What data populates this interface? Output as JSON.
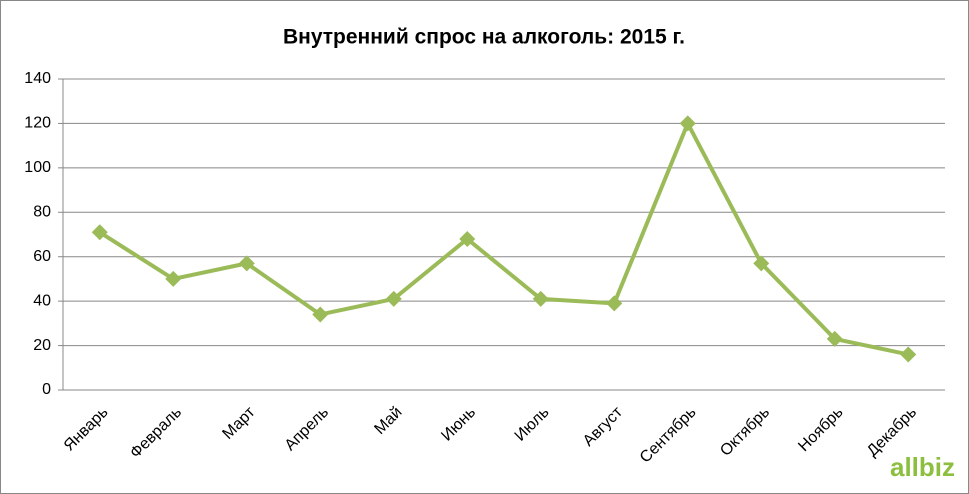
{
  "chart_data": {
    "type": "line",
    "title": "Внутренний спрос на алкоголь: 2015 г.",
    "categories": [
      "Январь",
      "Февраль",
      "Март",
      "Апрель",
      "Май",
      "Июнь",
      "Июль",
      "Август",
      "Сентябрь",
      "Октябрь",
      "Ноябрь",
      "Декабрь"
    ],
    "values": [
      71,
      50,
      57,
      34,
      41,
      68,
      41,
      39,
      120,
      57,
      23,
      16
    ],
    "color": "#9bbb59",
    "ylim": [
      0,
      140
    ],
    "yticks": [
      0,
      20,
      40,
      60,
      80,
      100,
      120,
      140
    ],
    "grid": true,
    "watermark": "allbiz"
  }
}
